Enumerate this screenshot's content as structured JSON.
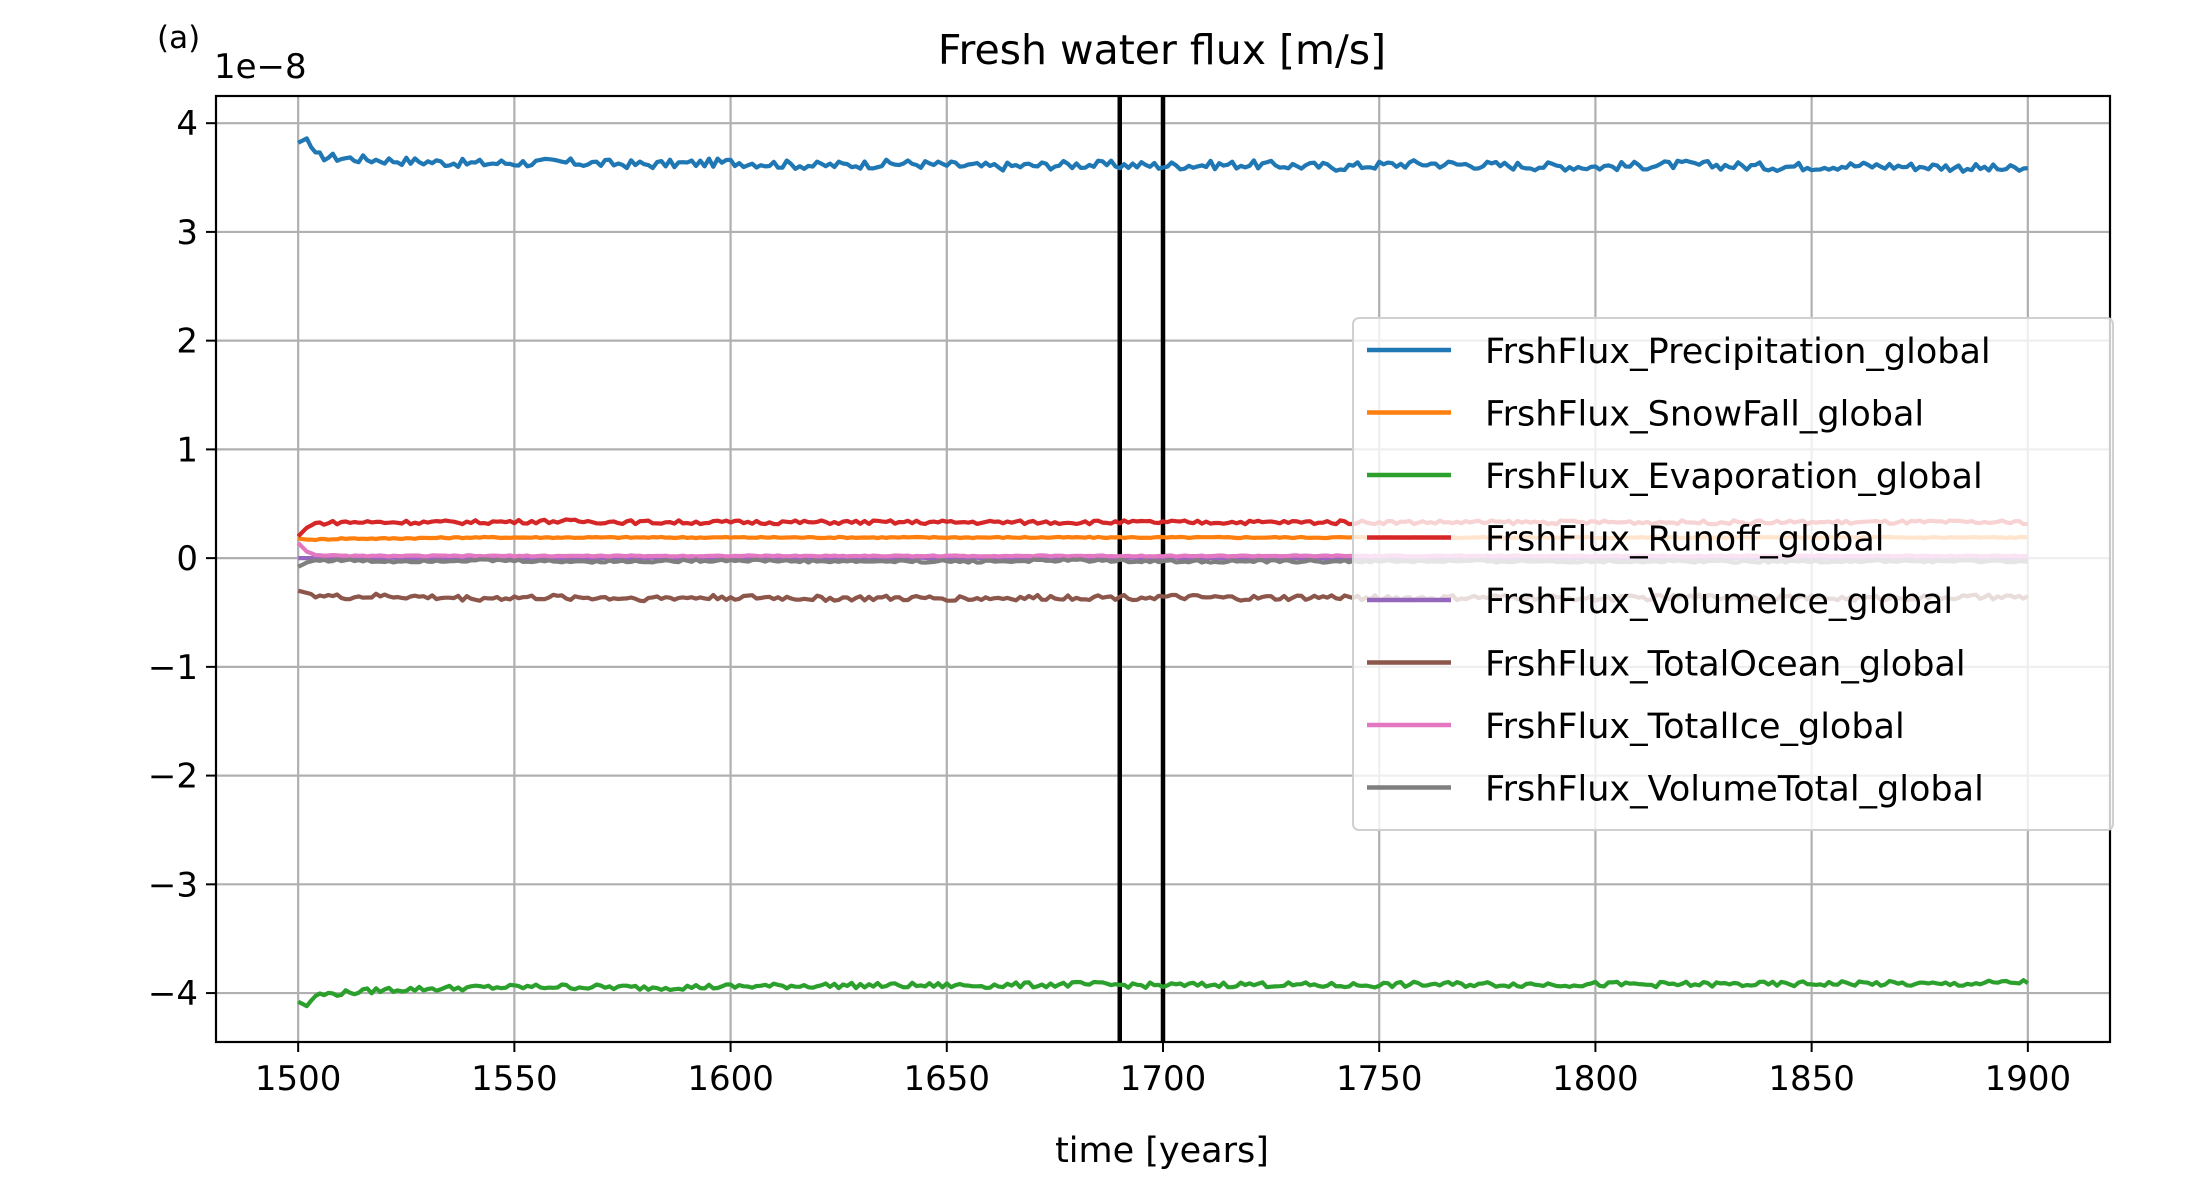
{
  "panel_label": "(a)",
  "chart_data": {
    "type": "line",
    "title": "Fresh water flux [m/s]",
    "xlabel": "time [years]",
    "ylabel": "",
    "y_offset_label": "1e−8",
    "xlim": [
      1481,
      1919
    ],
    "ylim": [
      -4.45,
      4.25
    ],
    "xticks": [
      1500,
      1550,
      1600,
      1650,
      1700,
      1750,
      1800,
      1850,
      1900
    ],
    "xtick_labels": [
      "1500",
      "1550",
      "1600",
      "1650",
      "1700",
      "1750",
      "1800",
      "1850",
      "1900"
    ],
    "yticks": [
      -4,
      -3,
      -2,
      -1,
      0,
      1,
      2,
      3,
      4
    ],
    "ytick_labels": [
      "−4",
      "−3",
      "−2",
      "−1",
      "0",
      "1",
      "2",
      "3",
      "4"
    ],
    "grid": true,
    "legend_position": "center-right",
    "vertical_lines": [
      1690,
      1700
    ],
    "vertical_line_color": "#000000",
    "x": [
      1500,
      1502,
      1504,
      1510,
      1520,
      1540,
      1560,
      1580,
      1600,
      1620,
      1640,
      1660,
      1680,
      1700,
      1720,
      1740,
      1760,
      1780,
      1800,
      1820,
      1840,
      1860,
      1880,
      1900
    ],
    "series": [
      {
        "name": "FrshFlux_Precipitation_global",
        "color": "#1f77b4",
        "values": [
          3.82,
          3.86,
          3.7,
          3.68,
          3.66,
          3.63,
          3.64,
          3.62,
          3.64,
          3.61,
          3.63,
          3.6,
          3.62,
          3.61,
          3.62,
          3.6,
          3.63,
          3.61,
          3.6,
          3.62,
          3.6,
          3.61,
          3.6,
          3.57
        ]
      },
      {
        "name": "FrshFlux_SnowFall_global",
        "color": "#ff7f0e",
        "values": [
          0.18,
          0.17,
          0.17,
          0.18,
          0.18,
          0.19,
          0.19,
          0.19,
          0.19,
          0.19,
          0.19,
          0.19,
          0.19,
          0.19,
          0.19,
          0.19,
          0.19,
          0.19,
          0.19,
          0.19,
          0.19,
          0.19,
          0.19,
          0.19
        ]
      },
      {
        "name": "FrshFlux_Evaporation_global",
        "color": "#2ca02c",
        "values": [
          -4.08,
          -4.12,
          -4.02,
          -4.0,
          -3.97,
          -3.95,
          -3.94,
          -3.95,
          -3.94,
          -3.93,
          -3.93,
          -3.93,
          -3.92,
          -3.93,
          -3.92,
          -3.93,
          -3.92,
          -3.92,
          -3.92,
          -3.92,
          -3.92,
          -3.91,
          -3.92,
          -3.9
        ]
      },
      {
        "name": "FrshFlux_Runoff_global",
        "color": "#d62728",
        "values": [
          0.2,
          0.28,
          0.32,
          0.33,
          0.33,
          0.33,
          0.34,
          0.33,
          0.33,
          0.33,
          0.33,
          0.33,
          0.33,
          0.33,
          0.33,
          0.33,
          0.33,
          0.33,
          0.33,
          0.33,
          0.33,
          0.33,
          0.33,
          0.33
        ]
      },
      {
        "name": "FrshFlux_VolumeIce_global",
        "color": "#9467bd",
        "values": [
          0.0,
          0.0,
          0.0,
          0.0,
          0.0,
          0.0,
          0.0,
          0.0,
          0.0,
          0.0,
          0.0,
          0.0,
          0.0,
          0.0,
          0.0,
          0.0,
          0.0,
          0.0,
          0.0,
          0.0,
          0.0,
          0.0,
          0.0,
          0.0
        ]
      },
      {
        "name": "FrshFlux_TotalOcean_global",
        "color": "#8c564b",
        "values": [
          -0.3,
          -0.32,
          -0.34,
          -0.36,
          -0.35,
          -0.37,
          -0.36,
          -0.37,
          -0.36,
          -0.37,
          -0.37,
          -0.37,
          -0.36,
          -0.36,
          -0.37,
          -0.36,
          -0.37,
          -0.36,
          -0.37,
          -0.36,
          -0.36,
          -0.37,
          -0.36,
          -0.36
        ]
      },
      {
        "name": "FrshFlux_TotalIce_global",
        "color": "#e377c2",
        "values": [
          0.14,
          0.06,
          0.03,
          0.02,
          0.02,
          0.02,
          0.02,
          0.02,
          0.02,
          0.02,
          0.02,
          0.02,
          0.02,
          0.02,
          0.02,
          0.02,
          0.02,
          0.02,
          0.02,
          0.02,
          0.02,
          0.02,
          0.02,
          0.02
        ]
      },
      {
        "name": "FrshFlux_VolumeTotal_global",
        "color": "#7f7f7f",
        "values": [
          -0.08,
          -0.04,
          -0.02,
          -0.02,
          -0.03,
          -0.02,
          -0.03,
          -0.03,
          -0.02,
          -0.03,
          -0.03,
          -0.03,
          -0.02,
          -0.03,
          -0.03,
          -0.03,
          -0.03,
          -0.03,
          -0.03,
          -0.03,
          -0.03,
          -0.03,
          -0.03,
          -0.03
        ]
      }
    ]
  }
}
